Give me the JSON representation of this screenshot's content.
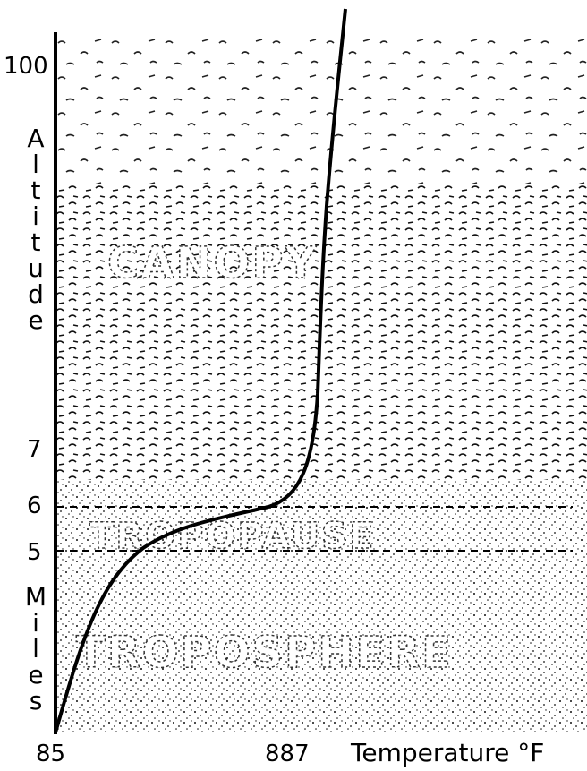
{
  "axis_labels": {
    "y_top": "Altitude",
    "y_bottom": "Miles",
    "x": "Temperature °F"
  },
  "y_tick_labels": [
    "100",
    "7",
    "6",
    "5"
  ],
  "x_tick_labels": [
    "85",
    "887"
  ],
  "regions": [
    "CANOPY",
    "TROPOPAUSE",
    "TROPOSPHERE"
  ]
}
